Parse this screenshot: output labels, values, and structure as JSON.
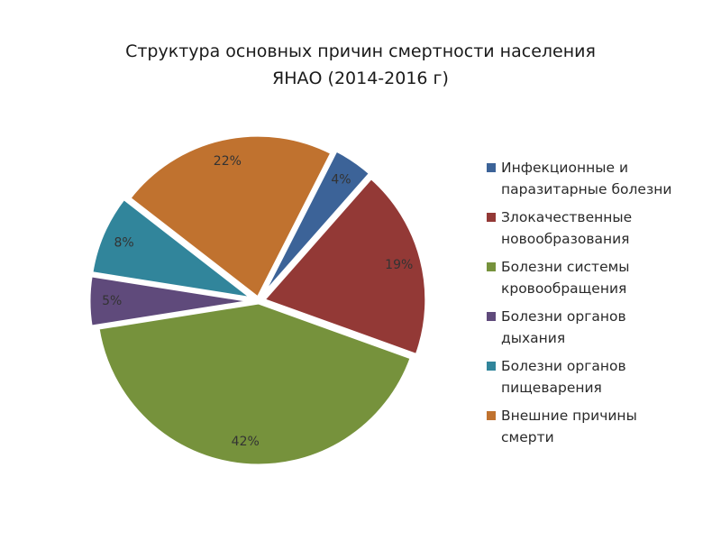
{
  "chart_data": {
    "type": "pie",
    "title_lines": [
      "Структура основных причин смертности населения",
      "ЯНАО (2014-2016 г)"
    ],
    "legend_position": "right",
    "slices": [
      {
        "name": "Инфекционные и\nпаразитарные болезни",
        "value": 4,
        "label": "4%",
        "color": "#3c6398"
      },
      {
        "name": "Злокачественные\nновообразования",
        "value": 19,
        "label": "19%",
        "color": "#933936"
      },
      {
        "name": "Болезни системы\nкровообращения",
        "value": 42,
        "label": "42%",
        "color": "#76923c"
      },
      {
        "name": "Болезни органов\nдыхания",
        "value": 5,
        "label": "5%",
        "color": "#5f4a7b"
      },
      {
        "name": "Болезни органов\nпищеварения",
        "value": 8,
        "label": "8%",
        "color": "#31859b"
      },
      {
        "name": "Внешние причины\nсмерти",
        "value": 22,
        "label": "22%",
        "color": "#c0722f"
      }
    ]
  }
}
